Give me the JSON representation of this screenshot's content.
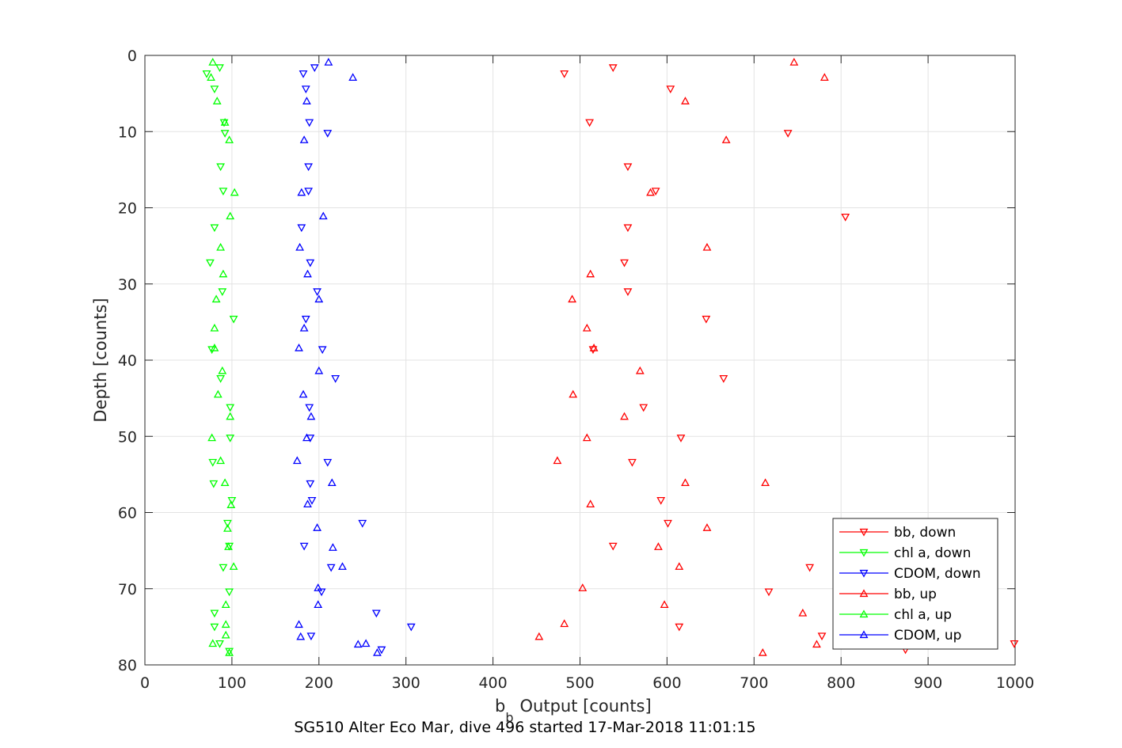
{
  "chart_data": {
    "type": "scatter",
    "title": "",
    "xlabel": "Output [counts]",
    "xlabel_prefix": "b",
    "xlabel_subscript": "b",
    "ylabel": "Depth [counts]",
    "xlim": [
      0,
      1000
    ],
    "ylim": [
      0,
      80
    ],
    "y_reversed": true,
    "grid": true,
    "xticks": [
      "0",
      "100",
      "200",
      "300",
      "400",
      "500",
      "600",
      "700",
      "800",
      "900",
      "1000"
    ],
    "yticks": [
      "0",
      "10",
      "20",
      "30",
      "40",
      "50",
      "60",
      "70",
      "80"
    ],
    "legend_position": "bottom-right",
    "caption": "SG510 Alter Eco Mar, dive 496 started 17-Mar-2018 11:01:15",
    "series": [
      {
        "name": "bb, down",
        "color": "#ff0000",
        "marker": "triangle-down",
        "points": [
          [
            538,
            1.6
          ],
          [
            482,
            2.4
          ],
          [
            604,
            4.4
          ],
          [
            511,
            8.8
          ],
          [
            739,
            10.2
          ],
          [
            555,
            14.6
          ],
          [
            587,
            17.8
          ],
          [
            805,
            21.2
          ],
          [
            555,
            22.6
          ],
          [
            551,
            27.2
          ],
          [
            555,
            31
          ],
          [
            645,
            34.6
          ],
          [
            515,
            38.6
          ],
          [
            665,
            42.4
          ],
          [
            573,
            46.2
          ],
          [
            616,
            50.2
          ],
          [
            560,
            53.4
          ],
          [
            593,
            58.4
          ],
          [
            601,
            61.4
          ],
          [
            538,
            64.4
          ],
          [
            764,
            67.2
          ],
          [
            717,
            70.4
          ],
          [
            614,
            75
          ],
          [
            778,
            76.2
          ],
          [
            874,
            78
          ],
          [
            999,
            77.2
          ]
        ]
      },
      {
        "name": "chl a, down",
        "color": "#00ff00",
        "marker": "triangle-down",
        "points": [
          [
            86,
            1.6
          ],
          [
            71,
            2.4
          ],
          [
            80,
            4.4
          ],
          [
            91,
            8.8
          ],
          [
            92,
            10.2
          ],
          [
            87,
            14.6
          ],
          [
            90,
            17.8
          ],
          [
            80,
            22.6
          ],
          [
            75,
            27.2
          ],
          [
            89,
            31
          ],
          [
            102,
            34.6
          ],
          [
            77,
            38.6
          ],
          [
            87,
            42.4
          ],
          [
            98,
            46.2
          ],
          [
            98,
            50.2
          ],
          [
            78,
            53.4
          ],
          [
            79,
            56.2
          ],
          [
            100,
            58.4
          ],
          [
            95,
            61.4
          ],
          [
            97,
            64.4
          ],
          [
            90,
            67.2
          ],
          [
            97,
            70.4
          ],
          [
            80,
            73.2
          ],
          [
            80,
            75
          ],
          [
            86,
            77.2
          ],
          [
            97,
            78.2
          ]
        ]
      },
      {
        "name": "CDOM, down",
        "color": "#0000ff",
        "marker": "triangle-down",
        "points": [
          [
            195,
            1.6
          ],
          [
            182,
            2.4
          ],
          [
            185,
            4.4
          ],
          [
            189,
            8.8
          ],
          [
            210,
            10.2
          ],
          [
            188,
            14.6
          ],
          [
            188,
            17.8
          ],
          [
            180,
            22.6
          ],
          [
            190,
            27.2
          ],
          [
            198,
            31
          ],
          [
            185,
            34.6
          ],
          [
            204,
            38.6
          ],
          [
            219,
            42.4
          ],
          [
            189,
            46.2
          ],
          [
            190,
            50.2
          ],
          [
            210,
            53.4
          ],
          [
            190,
            56.2
          ],
          [
            192,
            58.4
          ],
          [
            250,
            61.4
          ],
          [
            183,
            64.4
          ],
          [
            214,
            67.2
          ],
          [
            203,
            70.4
          ],
          [
            266,
            73.2
          ],
          [
            306,
            75
          ],
          [
            191,
            76.2
          ],
          [
            272,
            78
          ]
        ]
      },
      {
        "name": "bb, up",
        "color": "#ff0000",
        "marker": "triangle-up",
        "points": [
          [
            746,
            0.9
          ],
          [
            781,
            2.9
          ],
          [
            621,
            6
          ],
          [
            668,
            11.1
          ],
          [
            581,
            18
          ],
          [
            646,
            25.2
          ],
          [
            512,
            28.7
          ],
          [
            491,
            32
          ],
          [
            508,
            35.8
          ],
          [
            516,
            38.4
          ],
          [
            569,
            41.4
          ],
          [
            492,
            44.5
          ],
          [
            551,
            47.4
          ],
          [
            508,
            50.2
          ],
          [
            474,
            53.2
          ],
          [
            621,
            56.1
          ],
          [
            713,
            56.1
          ],
          [
            512,
            58.9
          ],
          [
            646,
            62
          ],
          [
            590,
            64.5
          ],
          [
            614,
            67.1
          ],
          [
            503,
            69.9
          ],
          [
            597,
            72.1
          ],
          [
            482,
            74.6
          ],
          [
            453,
            76.3
          ],
          [
            756,
            73.2
          ],
          [
            772,
            77.3
          ],
          [
            710,
            78.4
          ]
        ]
      },
      {
        "name": "chl a, up",
        "color": "#00ff00",
        "marker": "triangle-up",
        "points": [
          [
            78,
            0.9
          ],
          [
            76,
            2.9
          ],
          [
            83,
            6
          ],
          [
            92,
            8.8
          ],
          [
            97,
            11.1
          ],
          [
            103,
            18
          ],
          [
            98,
            21.1
          ],
          [
            87,
            25.2
          ],
          [
            90,
            28.7
          ],
          [
            82,
            32
          ],
          [
            80,
            35.8
          ],
          [
            80,
            38.4
          ],
          [
            89,
            41.4
          ],
          [
            84,
            44.5
          ],
          [
            98,
            47.4
          ],
          [
            77,
            50.2
          ],
          [
            87,
            53.2
          ],
          [
            92,
            56.1
          ],
          [
            99,
            59
          ],
          [
            95,
            62.1
          ],
          [
            96,
            64.5
          ],
          [
            102,
            67.1
          ],
          [
            93,
            72.1
          ],
          [
            93,
            74.7
          ],
          [
            93,
            76.1
          ],
          [
            78,
            77.2
          ],
          [
            97,
            78.4
          ]
        ]
      },
      {
        "name": "CDOM, up",
        "color": "#0000ff",
        "marker": "triangle-up",
        "points": [
          [
            211,
            0.9
          ],
          [
            239,
            2.9
          ],
          [
            186,
            6
          ],
          [
            183,
            11.1
          ],
          [
            180,
            18
          ],
          [
            205,
            21.1
          ],
          [
            178,
            25.2
          ],
          [
            187,
            28.7
          ],
          [
            200,
            32
          ],
          [
            183,
            35.8
          ],
          [
            177,
            38.4
          ],
          [
            200,
            41.4
          ],
          [
            182,
            44.5
          ],
          [
            191,
            47.4
          ],
          [
            186,
            50.2
          ],
          [
            175,
            53.2
          ],
          [
            215,
            56.1
          ],
          [
            187,
            58.9
          ],
          [
            198,
            62
          ],
          [
            216,
            64.6
          ],
          [
            227,
            67.1
          ],
          [
            199,
            69.9
          ],
          [
            199,
            72.1
          ],
          [
            177,
            74.7
          ],
          [
            179,
            76.3
          ],
          [
            245,
            77.3
          ],
          [
            254,
            77.2
          ],
          [
            267,
            78.4
          ]
        ]
      }
    ]
  }
}
